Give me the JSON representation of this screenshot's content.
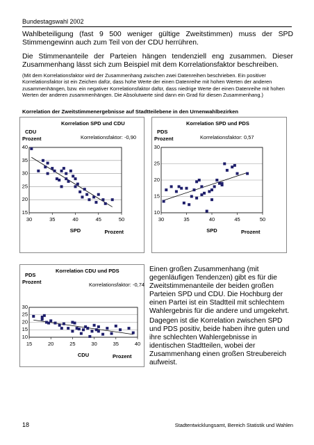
{
  "header": {
    "title": "Bundestagswahl 2002"
  },
  "paragraphs": [
    "Wahlbeteiligung (fast 9 500 weniger gültige Zweitstimmen) muss der SPD Stimmengewinn auch zum Teil von der CDU herrühren.",
    "Die Stimmenanteile der Parteien hängen tendenziell eng zusammen. Dieser Zusammenhang lässt sich zum Beispiel mit dem Korrelationsfaktor beschreiben."
  ],
  "note": "(Mit dem Korrelationsfaktor wird der Zusammenhang zwischen zwei Datenreihen beschrieben. Ein positiver Korrelationsfaktor ist ein Zeichen dafür, dass hohe Werte der einen Datenreihe mit hohen Werten der anderen zusammenhängen, bzw. ein negativer Korrelationsfaktor dafür, dass niedrige Werte der einen Datenreihe mit hohen Werten der anderen zusammenhängen. Die Absolutwerte sind dann ein Grad für diesen Zusammenhang.)",
  "caption": "Korrelation der Zweitstimmenergebnisse auf Stadtteilebene in den Urnenwahlbezirken",
  "side_text": [
    "Einen großen Zusammenhang (mit gegenläufigen Tendenzen) gibt es für die Zweitstimmenanteile der beiden großen Parteien SPD und CDU. Die Hochburg der einen Partei ist ein Stadtteil mit schlechtem Wahlergebnis für die andere und umgekehrt.",
    "Dagegen ist die Korrelation zwischen SPD und PDS positiv, beide haben ihre guten und ihre schlechten Wahlergebnisse in identischen Stadtteilen, wobei der Zusammenhang einen großen Streubereich aufweist."
  ],
  "footer": {
    "page": "18",
    "source": "Stadtentwicklungsamt, Bereich Statistik und Wahlen"
  },
  "chart_data": [
    {
      "type": "scatter",
      "title": "Korrelation SPD und CDU",
      "annotation": "Korrelationsfaktor: -0,90",
      "y_label": "CDU",
      "y_unit": "Prozent",
      "x_label": "SPD",
      "x_unit": "Prozent",
      "color": "#1f1f6b",
      "xlim": [
        30,
        50
      ],
      "xticks": [
        30,
        35,
        40,
        45,
        50
      ],
      "ylim": [
        15,
        40
      ],
      "yticks": [
        15,
        20,
        25,
        30,
        35,
        40
      ],
      "grid": true,
      "trendline": true,
      "x": [
        30.5,
        32,
        33,
        33.5,
        34,
        34,
        35,
        35.5,
        36,
        36.5,
        37,
        37.5,
        37,
        38,
        38,
        38.5,
        39,
        39.5,
        40,
        40,
        40.5,
        41,
        41.5,
        42,
        42.5,
        43,
        44,
        44.5,
        45,
        46,
        46.5,
        48
      ],
      "values": [
        39.5,
        31,
        35,
        32.5,
        34,
        30,
        32,
        31,
        28,
        27.5,
        31,
        32,
        25,
        30,
        28,
        27,
        31,
        29,
        28,
        25,
        26,
        23,
        21,
        24,
        22,
        20,
        21,
        19,
        22,
        20,
        18.5,
        20
      ]
    },
    {
      "type": "scatter",
      "title": "Korrelation SPD und PDS",
      "annotation": "Korrelationsfaktor: 0,57",
      "y_label": "PDS",
      "y_unit": "Prozent",
      "x_label": "SPD",
      "x_unit": "Prozent",
      "color": "#1f1f6b",
      "xlim": [
        30,
        50
      ],
      "xticks": [
        30,
        35,
        40,
        45,
        50
      ],
      "ylim": [
        10,
        30
      ],
      "yticks": [
        10,
        15,
        20,
        25,
        30
      ],
      "grid": true,
      "trendline": true,
      "x": [
        30.5,
        31,
        32,
        33,
        33.5,
        34,
        34.5,
        35,
        35.5,
        36,
        36.5,
        37,
        37,
        37.5,
        38,
        38,
        38.5,
        39,
        39.5,
        40,
        40,
        40.5,
        41,
        41.5,
        42,
        42,
        42.5,
        43,
        44,
        44.5,
        45,
        47
      ],
      "values": [
        13.5,
        17,
        18,
        16.5,
        18,
        17.5,
        13,
        17.5,
        12.5,
        15,
        17,
        19.5,
        14.5,
        20,
        18,
        15.5,
        16,
        10.5,
        16.5,
        17,
        14,
        18,
        20,
        19,
        18.5,
        19,
        25,
        23,
        24,
        24.5,
        22,
        22
      ]
    },
    {
      "type": "scatter",
      "title": "Korrelation CDU und PDS",
      "annotation": "Korrelationsfaktor: -0,74",
      "y_label": "PDS",
      "y_unit": "Prozent",
      "x_label": "CDU",
      "x_unit": "Prozent",
      "color": "#1f1f6b",
      "xlim": [
        15,
        40
      ],
      "xticks": [
        15,
        20,
        25,
        30,
        35,
        40
      ],
      "ylim": [
        10,
        30
      ],
      "yticks": [
        10,
        15,
        20,
        25,
        30
      ],
      "grid": true,
      "trendline": true,
      "x": [
        16,
        18,
        18.5,
        18,
        19,
        19.5,
        20,
        21,
        22,
        22.5,
        23,
        24,
        25,
        25.5,
        25,
        26,
        26.5,
        27,
        27.5,
        28,
        28.5,
        29,
        29.5,
        30,
        30.5,
        31,
        31,
        32,
        33,
        34,
        35,
        36,
        38,
        39
      ],
      "values": [
        24,
        23.5,
        24.5,
        22,
        20,
        19.5,
        21,
        19.5,
        18,
        16,
        19,
        16,
        20,
        19.5,
        14,
        16,
        15.5,
        12.5,
        15,
        17,
        16,
        10.5,
        14,
        18,
        15,
        14,
        17,
        12,
        16,
        12.5,
        17.5,
        15,
        16,
        13
      ]
    }
  ]
}
